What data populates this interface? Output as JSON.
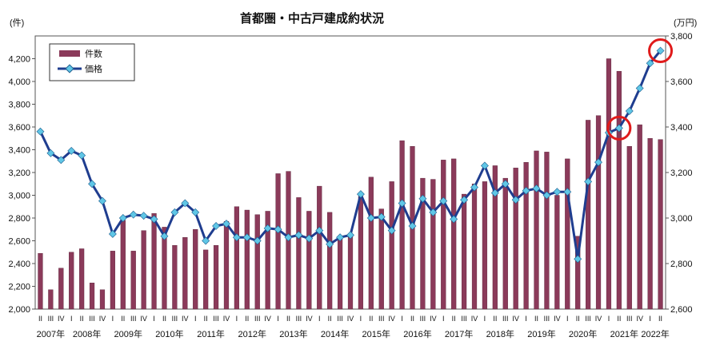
{
  "chart_data": {
    "type": "bar+line",
    "title": "首都圏・中古戸建成約状況",
    "y_left_unit": "(件)",
    "y_right_unit": "(万円)",
    "y_left_range": [
      2000,
      4400
    ],
    "y_left_ticks": [
      "2,000",
      "2,200",
      "2,400",
      "2,600",
      "2,800",
      "3,000",
      "3,200",
      "3,400",
      "3,600",
      "3,800",
      "4,000",
      "4,200"
    ],
    "y_right_range": [
      2600,
      3800
    ],
    "y_right_ticks": [
      "2,600",
      "2,800",
      "3,000",
      "3,200",
      "3,400",
      "3,600",
      "3,800"
    ],
    "quarter_labels": [
      "II",
      "III",
      "IV",
      "I",
      "II",
      "III",
      "IV",
      "I",
      "II",
      "III",
      "IV",
      "I",
      "II",
      "III",
      "IV",
      "I",
      "II",
      "III",
      "IV",
      "I",
      "II",
      "III",
      "IV",
      "I",
      "II",
      "III",
      "IV",
      "I",
      "II",
      "III",
      "IV",
      "I",
      "II",
      "III",
      "IV",
      "I",
      "II",
      "III",
      "IV",
      "I",
      "II",
      "III",
      "IV",
      "I",
      "II",
      "III",
      "IV",
      "I",
      "II",
      "III",
      "IV",
      "I",
      "II",
      "III",
      "IV",
      "I",
      "II",
      "III",
      "IV",
      "I",
      "II"
    ],
    "year_labels": [
      {
        "label": "2007年",
        "start": 0
      },
      {
        "label": "2008年",
        "start": 3
      },
      {
        "label": "2009年",
        "start": 7
      },
      {
        "label": "2010年",
        "start": 11
      },
      {
        "label": "2011年",
        "start": 15
      },
      {
        "label": "2012年",
        "start": 19
      },
      {
        "label": "2013年",
        "start": 23
      },
      {
        "label": "2014年",
        "start": 27
      },
      {
        "label": "2015年",
        "start": 31
      },
      {
        "label": "2016年",
        "start": 35
      },
      {
        "label": "2017年",
        "start": 39
      },
      {
        "label": "2018年",
        "start": 43
      },
      {
        "label": "2019年",
        "start": 47
      },
      {
        "label": "2020年",
        "start": 51
      },
      {
        "label": "2021年",
        "start": 55
      },
      {
        "label": "2022年",
        "start": 59
      }
    ],
    "series": [
      {
        "name": "件数",
        "type": "bar",
        "axis": "left",
        "color": "#8b3a5a",
        "values": [
          2490,
          2170,
          2360,
          2500,
          2530,
          2230,
          2170,
          2510,
          2780,
          2510,
          2690,
          2840,
          2720,
          2560,
          2630,
          2700,
          2520,
          2560,
          2770,
          2900,
          2870,
          2830,
          2860,
          3190,
          3210,
          2980,
          2860,
          3080,
          2850,
          2640,
          2640,
          2990,
          3160,
          2880,
          3120,
          3480,
          3430,
          3150,
          3140,
          3310,
          3320,
          3010,
          3100,
          3120,
          3260,
          3150,
          3240,
          3290,
          3390,
          3380,
          3000,
          3320,
          2640,
          3660,
          3700,
          4200,
          4090,
          3430,
          3620,
          3500,
          3490
        ]
      },
      {
        "name": "価格",
        "type": "line",
        "axis": "right",
        "color": "#1f3d8f",
        "marker_color": "#5fc6e6",
        "values": [
          3380,
          3285,
          3255,
          3295,
          3275,
          3150,
          3075,
          2930,
          3000,
          3015,
          3010,
          2995,
          2920,
          3025,
          3065,
          3025,
          2900,
          2965,
          2975,
          2915,
          2915,
          2900,
          2955,
          2950,
          2915,
          2925,
          2910,
          2945,
          2885,
          2915,
          2925,
          3105,
          3000,
          3005,
          2945,
          3065,
          2965,
          3085,
          3025,
          3075,
          2995,
          3080,
          3135,
          3230,
          3110,
          3150,
          3080,
          3120,
          3130,
          3100,
          3115,
          3115,
          2820,
          3160,
          3245,
          3375,
          3395,
          3470,
          3570,
          3680,
          3735
        ]
      }
    ],
    "legend": {
      "position": "top-left",
      "entries": [
        "件数",
        "価格"
      ]
    },
    "highlight_circles": [
      56,
      60
    ],
    "highlight_color": "#e01b1b",
    "grid": false
  }
}
